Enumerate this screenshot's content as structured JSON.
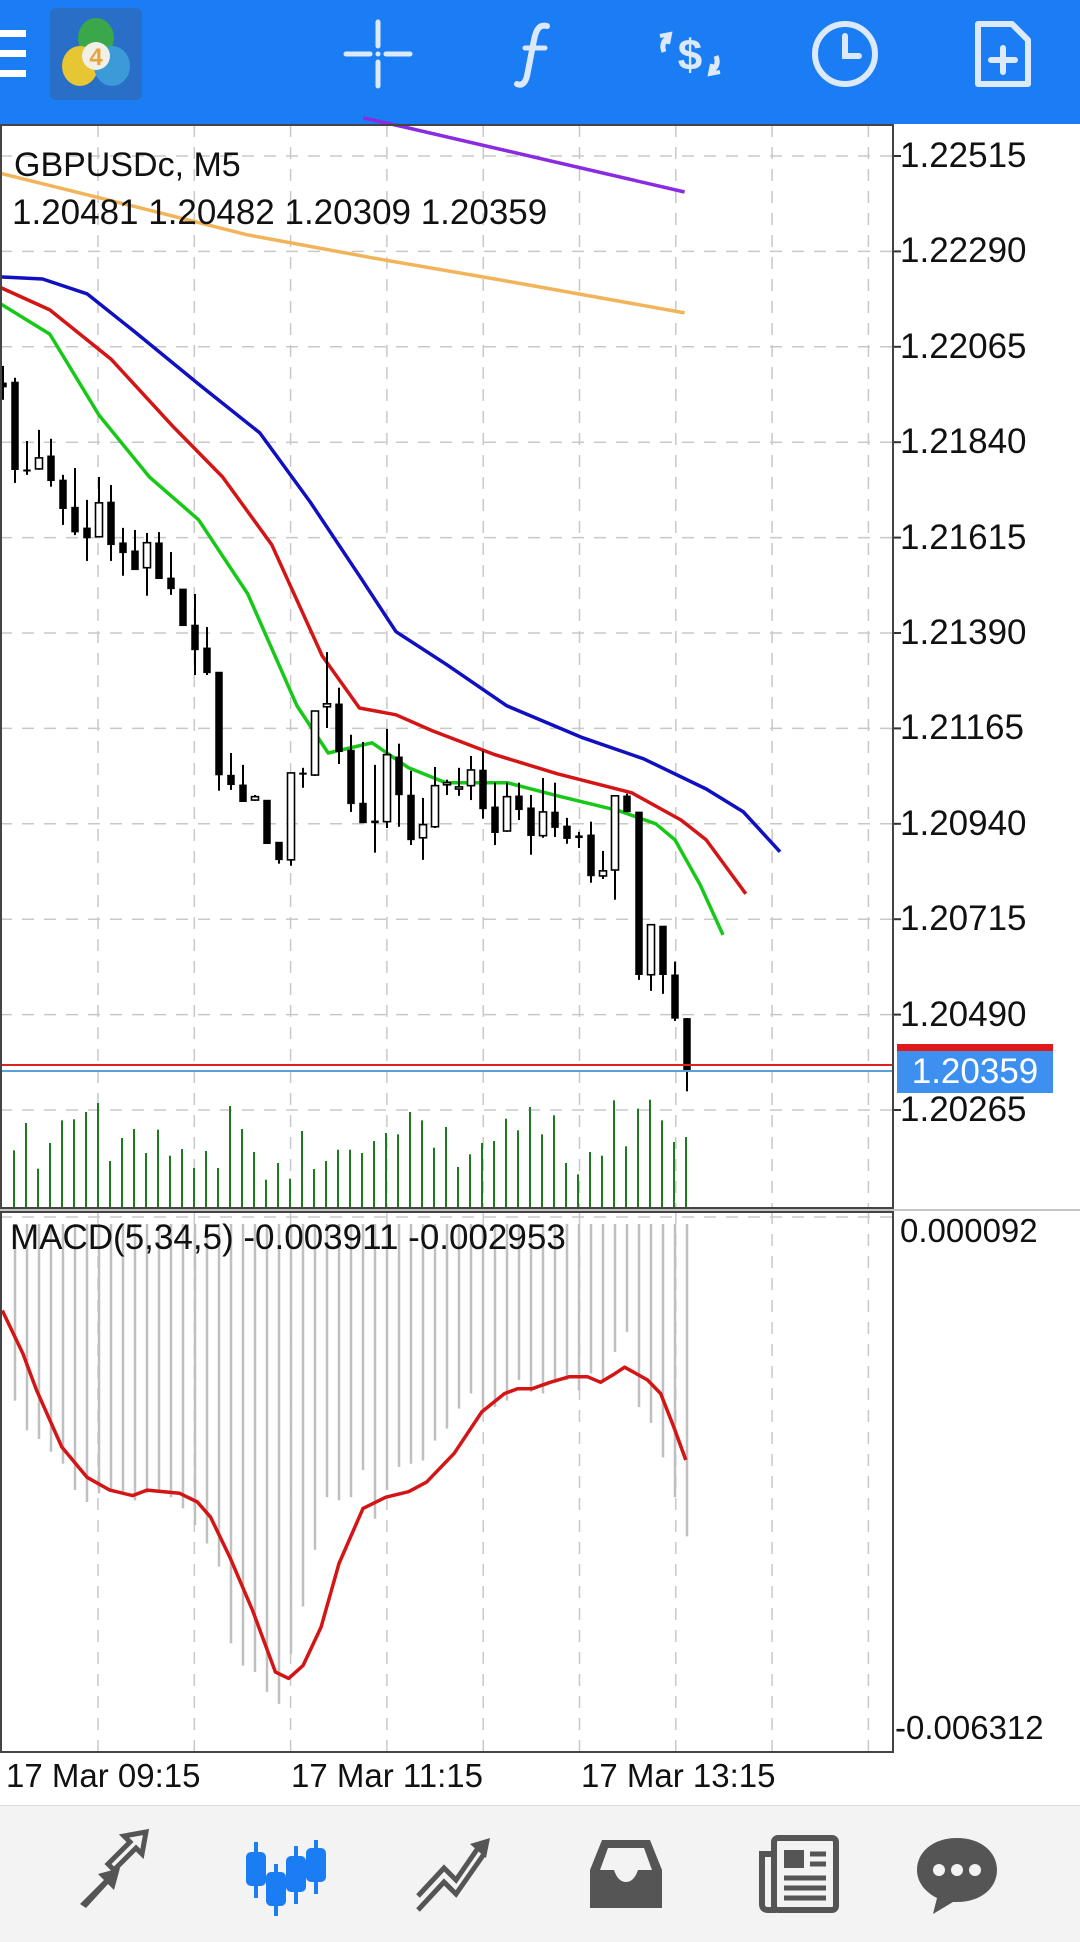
{
  "toolbar": {
    "icons": [
      "menu-icon",
      "metatrader-logo",
      "crosshair-icon",
      "indicators-icon",
      "trade-icon",
      "timeframe-icon",
      "new-order-icon"
    ],
    "background": "#1a7df3",
    "logo_text": "4"
  },
  "chart": {
    "symbol_title": "GBPUSDc, M5",
    "ohlc_line": "1.20481 1.20482 1.20309 1.20359",
    "current_price": "1.20359",
    "price_axis_labels": [
      "1.22515",
      "1.22290",
      "1.22065",
      "1.21840",
      "1.21615",
      "1.21390",
      "1.21165",
      "1.20940",
      "1.20715",
      "1.20490",
      "1.20265"
    ],
    "time_axis_labels": [
      "17 Mar 09:15",
      "17 Mar 11:15",
      "17 Mar 13:15"
    ],
    "macd_label": "MACD(5,34,5) -0.003911 -0.002953",
    "macd_axis_labels": [
      "0.000092",
      "-0.006312"
    ],
    "colors": {
      "bid_line": "#d22",
      "ask_line": "#5aa0d8",
      "price_box": "#3d8ff0",
      "ma_blue": "#1010c0",
      "ma_red": "#d41515",
      "ma_green": "#18c818",
      "ma_purple": "#8a2be2",
      "ma_orange": "#f2b45a",
      "volume": "#1e7a1e",
      "macd_hist": "#c0c0c0",
      "macd_signal": "#d41515"
    }
  },
  "chart_data": [
    {
      "type": "candlestick",
      "title": "GBPUSDc, M5",
      "ylim": [
        1.20265,
        1.22515
      ],
      "ohlc": [
        [
          1.2198,
          1.2202,
          1.2194,
          1.2197
        ],
        [
          1.21982,
          1.21992,
          1.21744,
          1.21775
        ],
        [
          1.21775,
          1.21843,
          1.21763,
          1.21772
        ],
        [
          1.21777,
          1.21869,
          1.21775,
          1.21803
        ],
        [
          1.21808,
          1.21848,
          1.21735,
          1.21749
        ],
        [
          1.21751,
          1.21763,
          1.21645,
          1.21683
        ],
        [
          1.21687,
          1.21779,
          1.21621,
          1.21628
        ],
        [
          1.21638,
          1.21704,
          1.2156,
          1.21614
        ],
        [
          1.21617,
          1.21758,
          1.21617,
          1.21697
        ],
        [
          1.21699,
          1.21739,
          1.2156,
          1.21598
        ],
        [
          1.21603,
          1.21638,
          1.21525,
          1.21579
        ],
        [
          1.21584,
          1.21633,
          1.21539,
          1.21539
        ],
        [
          1.21544,
          1.21626,
          1.21478,
          1.21603
        ],
        [
          1.21603,
          1.21628,
          1.21518,
          1.21518
        ],
        [
          1.2152,
          1.21581,
          1.2148,
          1.21494
        ],
        [
          1.21494,
          1.21494,
          1.21407,
          1.21407
        ],
        [
          1.21409,
          1.21482,
          1.21291,
          1.2135
        ],
        [
          1.21355,
          1.21404,
          1.21291,
          1.21296
        ],
        [
          1.21298,
          1.21298,
          1.21018,
          1.21055
        ],
        [
          1.21055,
          1.21107,
          1.2102,
          1.21032
        ],
        [
          1.21032,
          1.21079,
          1.20992,
          1.20992
        ],
        [
          1.20996,
          1.21008,
          1.20994,
          1.21004
        ],
        [
          1.20996,
          1.20996,
          1.20893,
          1.20893
        ],
        [
          1.20897,
          1.20897,
          1.20846,
          1.20855
        ],
        [
          1.20855,
          1.2106,
          1.20841,
          1.2106
        ],
        [
          1.2106,
          1.21072,
          1.21025,
          1.21058
        ],
        [
          1.21055,
          1.21206,
          1.21053,
          1.21206
        ],
        [
          1.21216,
          1.21345,
          1.21166,
          1.21223
        ],
        [
          1.21223,
          1.21261,
          1.21081,
          1.2111
        ],
        [
          1.21114,
          1.2115,
          1.20968,
          1.20987
        ],
        [
          1.20989,
          1.21133,
          1.20942,
          1.20942
        ],
        [
          1.20947,
          1.21079,
          1.20872,
          1.20942
        ],
        [
          1.20945,
          1.21164,
          1.2093,
          1.21103
        ],
        [
          1.21098,
          1.21129,
          1.20933,
          1.21008
        ],
        [
          1.21008,
          1.21065,
          1.2089,
          1.20902
        ],
        [
          1.20907,
          1.21001,
          1.20855,
          1.20938
        ],
        [
          1.20933,
          1.21074,
          1.2093,
          1.2103
        ],
        [
          1.21032,
          1.21044,
          1.21008,
          1.21037
        ],
        [
          1.21022,
          1.21072,
          1.21006,
          1.21027
        ],
        [
          1.2103,
          1.211,
          1.20996,
          1.21067
        ],
        [
          1.21067,
          1.21112,
          1.20952,
          1.20975
        ],
        [
          1.2098,
          1.21037,
          1.2089,
          1.20919
        ],
        [
          1.20923,
          1.21037,
          1.20921,
          1.21004
        ],
        [
          1.21006,
          1.21037,
          1.20949,
          1.20973
        ],
        [
          1.20978,
          1.21008,
          1.20867,
          1.20912
        ],
        [
          1.20912,
          1.21048,
          1.20907,
          1.20968
        ],
        [
          1.20968,
          1.21037,
          1.20909,
          1.20931
        ],
        [
          1.20935,
          1.20954,
          1.20893,
          1.20905
        ],
        [
          1.20912,
          1.20921,
          1.20883,
          1.20907
        ],
        [
          1.20914,
          1.20945,
          1.20801,
          1.20817
        ],
        [
          1.20817,
          1.20876,
          1.2081,
          1.20829
        ],
        [
          1.20831,
          1.21006,
          1.20761,
          1.21006
        ],
        [
          1.21006,
          1.21011,
          1.20968,
          1.20968
        ],
        [
          1.20968,
          1.20968,
          1.20572,
          1.20584
        ],
        [
          1.20584,
          1.20702,
          1.20546,
          1.20702
        ],
        [
          1.20699,
          1.20699,
          1.20539,
          1.20584
        ],
        [
          1.20584,
          1.20615,
          1.20475,
          1.20481
        ],
        [
          1.20481,
          1.20482,
          1.20309,
          1.20359
        ]
      ],
      "moving_averages": [
        {
          "name": "blue",
          "color": "#1010c0",
          "points": [
            [
              -0.3,
              1.2223
            ],
            [
              3.3,
              1.22225
            ],
            [
              7,
              1.2219
            ],
            [
              11,
              1.221
            ],
            [
              16.3,
              1.21977
            ],
            [
              21.4,
              1.21862
            ],
            [
              25.6,
              1.21699
            ],
            [
              29.7,
              1.21525
            ],
            [
              32.75,
              1.21393
            ],
            [
              37,
              1.21315
            ],
            [
              42,
              1.21218
            ],
            [
              48.3,
              1.21143
            ],
            [
              53.4,
              1.21093
            ],
            [
              58.6,
              1.21022
            ],
            [
              61.7,
              1.20968
            ],
            [
              64.75,
              1.20874
            ]
          ]
        },
        {
          "name": "red",
          "color": "#d41515",
          "points": [
            [
              -0.3,
              1.22206
            ],
            [
              3.9,
              1.22152
            ],
            [
              9,
              1.22036
            ],
            [
              14.2,
              1.21876
            ],
            [
              18.3,
              1.21758
            ],
            [
              22.4,
              1.21598
            ],
            [
              26.6,
              1.21336
            ],
            [
              29.7,
              1.21213
            ],
            [
              32.75,
              1.21197
            ],
            [
              35.8,
              1.21159
            ],
            [
              41,
              1.21103
            ],
            [
              46.2,
              1.21058
            ],
            [
              52.4,
              1.21013
            ],
            [
              56.5,
              1.20949
            ],
            [
              58.6,
              1.20902
            ],
            [
              61.9,
              1.20775
            ]
          ]
        },
        {
          "name": "green",
          "color": "#18c818",
          "points": [
            [
              -0.3,
              1.22168
            ],
            [
              3.9,
              1.22095
            ],
            [
              8,
              1.21904
            ],
            [
              12.2,
              1.21758
            ],
            [
              16.3,
              1.21657
            ],
            [
              20.4,
              1.21482
            ],
            [
              24.5,
              1.21218
            ],
            [
              27.1,
              1.21107
            ],
            [
              30.75,
              1.21131
            ],
            [
              33.8,
              1.21072
            ],
            [
              36.9,
              1.21037
            ],
            [
              42,
              1.21037
            ],
            [
              46.2,
              1.21006
            ],
            [
              51.3,
              1.20971
            ],
            [
              54.4,
              1.2094
            ],
            [
              56,
              1.20902
            ],
            [
              58.1,
              1.20796
            ],
            [
              60,
              1.20678
            ]
          ]
        },
        {
          "name": "purple",
          "color": "#8a2be2",
          "points": [
            [
              30,
              1.22605
            ],
            [
              33.8,
              1.22581
            ],
            [
              56.8,
              1.2243
            ]
          ]
        },
        {
          "name": "orange",
          "color": "#f2b45a",
          "points": [
            [
              -0.3,
              1.22475
            ],
            [
              10.1,
              1.22402
            ],
            [
              20.4,
              1.22329
            ],
            [
              30.75,
              1.22275
            ],
            [
              41,
              1.22225
            ],
            [
              56.8,
              1.22145
            ]
          ]
        }
      ]
    },
    {
      "type": "bar",
      "title": "Volumes",
      "start_index": 1,
      "values": [
        170,
        252,
        115,
        192,
        260,
        263,
        285,
        312,
        138,
        207,
        234,
        162,
        232,
        154,
        174,
        117,
        168,
        117,
        303,
        234,
        165,
        82,
        132,
        85,
        228,
        114,
        138,
        172,
        172,
        162,
        198,
        222,
        218,
        285,
        260,
        178,
        240,
        120,
        158,
        192,
        198,
        265,
        230,
        300,
        218,
        275,
        132,
        98,
        165,
        154,
        320,
        182,
        295,
        322,
        260,
        195,
        210
      ]
    },
    {
      "type": "bar",
      "title": "MACD(5,34,5)",
      "ylim": [
        -0.006312,
        9.2e-05
      ],
      "start_index": 1,
      "histogram": [
        -0.00221,
        -0.00258,
        -0.00269,
        -0.00285,
        -0.003,
        -0.00333,
        -0.00348,
        -0.00337,
        -0.00333,
        -0.00337,
        -0.00346,
        -0.00337,
        -0.00335,
        -0.00342,
        -0.00356,
        -0.00377,
        -0.004,
        -0.00429,
        -0.00525,
        -0.00553,
        -0.00561,
        -0.00586,
        -0.00601,
        -0.00538,
        -0.00479,
        -0.00408,
        -0.00342,
        -0.00346,
        -0.00342,
        -0.00308,
        -0.00369,
        -0.00333,
        -0.00304,
        -0.003,
        -0.00296,
        -0.00271,
        -0.00256,
        -0.00231,
        -0.00212,
        -0.00235,
        -0.00229,
        -0.00221,
        -0.00195,
        -0.0021,
        -0.00212,
        -0.00198,
        -0.00195,
        -0.00208,
        -0.00187,
        -0.00195,
        -0.0016,
        -0.00135,
        -0.00229,
        -0.00249,
        -0.00292,
        -0.00342,
        -0.003911
      ],
      "signal": [
        [
          -0.06,
          -0.00108
        ],
        [
          1.66,
          -0.00162
        ],
        [
          2.8,
          -0.00208
        ],
        [
          4.9,
          -0.00279
        ],
        [
          7.0,
          -0.00317
        ],
        [
          8.9,
          -0.00333
        ],
        [
          10.8,
          -0.0034
        ],
        [
          12.0,
          -0.00333
        ],
        [
          14.7,
          -0.00337
        ],
        [
          16.2,
          -0.00348
        ],
        [
          17.3,
          -0.00367
        ],
        [
          18.9,
          -0.00417
        ],
        [
          20.8,
          -0.00484
        ],
        [
          22.7,
          -0.00561
        ],
        [
          23.8,
          -0.00569
        ],
        [
          25.0,
          -0.00553
        ],
        [
          26.5,
          -0.00505
        ],
        [
          28.0,
          -0.00425
        ],
        [
          30.0,
          -0.00356
        ],
        [
          31.9,
          -0.00342
        ],
        [
          33.8,
          -0.00335
        ],
        [
          35.3,
          -0.00323
        ],
        [
          37.6,
          -0.00287
        ],
        [
          39.9,
          -0.00235
        ],
        [
          41.8,
          -0.00212
        ],
        [
          42.9,
          -0.00206
        ],
        [
          44.1,
          -0.00206
        ],
        [
          45.6,
          -0.00198
        ],
        [
          47.2,
          -0.00191
        ],
        [
          48.7,
          -0.00191
        ],
        [
          49.8,
          -0.00198
        ],
        [
          51.0,
          -0.00187
        ],
        [
          51.8,
          -0.00179
        ],
        [
          53.7,
          -0.00195
        ],
        [
          54.8,
          -0.00212
        ],
        [
          55.9,
          -0.00254
        ],
        [
          56.9,
          -0.002953
        ]
      ]
    }
  ],
  "bottom_nav": {
    "items": [
      "quotes",
      "chart",
      "trade",
      "history",
      "news",
      "chat"
    ],
    "active": "chart",
    "active_color": "#1a7df3",
    "inactive_color": "#555555"
  }
}
